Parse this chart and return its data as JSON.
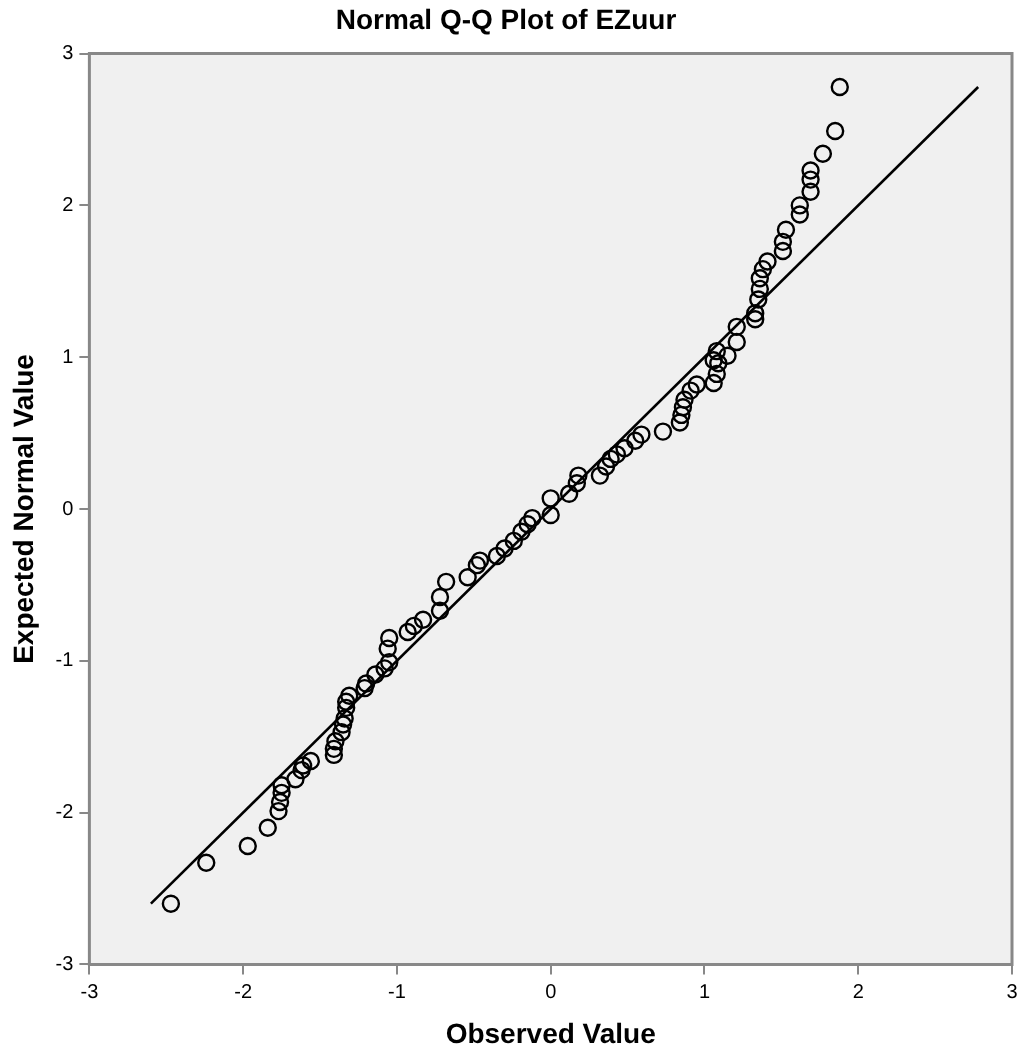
{
  "chart_data": {
    "type": "scatter",
    "title": "Normal Q-Q Plot of EZuur",
    "xlabel": "Observed Value",
    "ylabel": "Expected Normal Value",
    "xlim": [
      -3,
      3
    ],
    "ylim": [
      -3,
      3
    ],
    "xticks": [
      -3,
      -2,
      -1,
      0,
      1,
      2,
      3
    ],
    "yticks": [
      -3,
      -2,
      -1,
      0,
      1,
      2,
      3
    ],
    "grid": false,
    "legend": false,
    "marker": "circle",
    "series": [
      {
        "type": "scatter",
        "color": "#000000",
        "x": [
          -2.47,
          -2.24,
          -1.97,
          -1.84,
          -1.77,
          -1.76,
          -1.75,
          -1.75,
          -1.66,
          -1.62,
          -1.61,
          -1.56,
          -1.41,
          -1.41,
          -1.4,
          -1.36,
          -1.35,
          -1.34,
          -1.33,
          -1.33,
          -1.31,
          -1.21,
          -1.2,
          -1.14,
          -1.08,
          -1.05,
          -1.06,
          -1.05,
          -0.93,
          -0.89,
          -0.83,
          -0.72,
          -0.72,
          -0.68,
          -0.54,
          -0.48,
          -0.46,
          -0.35,
          -0.3,
          -0.24,
          -0.19,
          -0.15,
          -0.12,
          0.0,
          0.0,
          0.12,
          0.17,
          0.18,
          0.32,
          0.36,
          0.39,
          0.43,
          0.48,
          0.55,
          0.59,
          0.73,
          0.84,
          0.85,
          0.86,
          0.87,
          0.91,
          0.95,
          1.06,
          1.08,
          1.09,
          1.15,
          1.06,
          1.08,
          1.21,
          1.21,
          1.33,
          1.33,
          1.35,
          1.36,
          1.36,
          1.38,
          1.41,
          1.51,
          1.51,
          1.53,
          1.62,
          1.62,
          1.69,
          1.69,
          1.69,
          1.77,
          1.85,
          1.88
        ],
        "values": [
          -2.6,
          -2.33,
          -2.22,
          -2.1,
          -1.99,
          -1.93,
          -1.87,
          -1.82,
          -1.78,
          -1.72,
          -1.69,
          -1.66,
          -1.62,
          -1.58,
          -1.53,
          -1.47,
          -1.42,
          -1.38,
          -1.31,
          -1.27,
          -1.23,
          -1.18,
          -1.15,
          -1.09,
          -1.05,
          -1.01,
          -0.92,
          -0.85,
          -0.81,
          -0.77,
          -0.73,
          -0.67,
          -0.58,
          -0.48,
          -0.45,
          -0.37,
          -0.34,
          -0.31,
          -0.26,
          -0.21,
          -0.15,
          -0.1,
          -0.06,
          -0.04,
          0.07,
          0.1,
          0.17,
          0.22,
          0.22,
          0.28,
          0.33,
          0.36,
          0.4,
          0.45,
          0.49,
          0.51,
          0.57,
          0.62,
          0.67,
          0.72,
          0.78,
          0.82,
          0.83,
          0.89,
          0.96,
          1.01,
          0.98,
          1.04,
          1.1,
          1.2,
          1.25,
          1.29,
          1.38,
          1.45,
          1.52,
          1.58,
          1.63,
          1.7,
          1.76,
          1.84,
          1.94,
          2.0,
          2.09,
          2.17,
          2.23,
          2.34,
          2.49,
          2.78
        ]
      },
      {
        "type": "line",
        "color": "#000000",
        "marker": "none",
        "x": [
          -2.6,
          2.78
        ],
        "values": [
          -2.6,
          2.78
        ]
      }
    ]
  }
}
